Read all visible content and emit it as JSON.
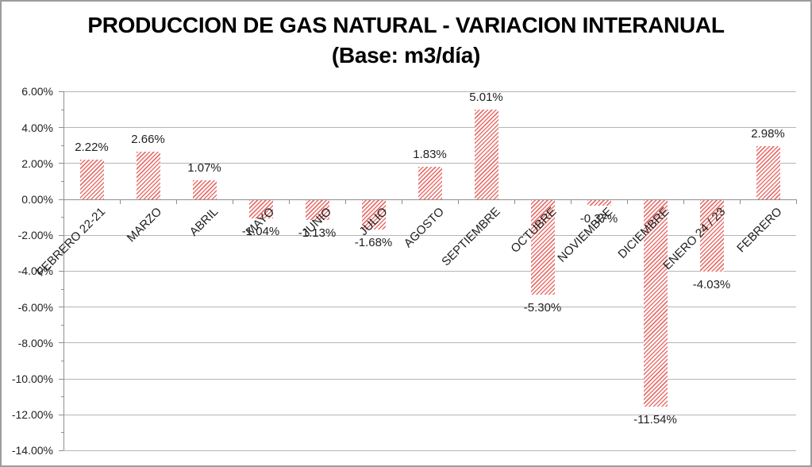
{
  "frame": {
    "border_color": "#9c9c9c",
    "background": "#ffffff"
  },
  "chart_data": {
    "type": "bar",
    "title": "PRODUCCION DE GAS NATURAL - VARIACION INTERANUAL",
    "subtitle": "(Base: m3/día)",
    "xlabel": "",
    "ylabel": "",
    "unit": "%",
    "categories": [
      "FEBRERO 22-21",
      "MARZO",
      "ABRIL",
      "MAYO",
      "JUNIO",
      "JULIO",
      "AGOSTO",
      "SEPTIEMBRE",
      "OCTUBRE",
      "NOVIEMBRE",
      "DICIEMBRE",
      "ENERO 24 / 23",
      "FEBRERO"
    ],
    "values": [
      2.22,
      2.66,
      1.07,
      -1.04,
      -1.13,
      -1.68,
      1.83,
      5.01,
      -5.3,
      -0.37,
      -11.54,
      -4.03,
      2.98
    ],
    "data_labels": [
      "2.22%",
      "2.66%",
      "1.07%",
      "-1.04%",
      "-1.13%",
      "-1.68%",
      "1.83%",
      "5.01%",
      "-5.30%",
      "-0.37%",
      "-11.54%",
      "-4.03%",
      "2.98%"
    ],
    "ylim": [
      -14,
      6
    ],
    "y_major_step": 2,
    "y_minor_step": 1,
    "y_tick_labels": [
      "6.00%",
      "4.00%",
      "2.00%",
      "0.00%",
      "-2.00%",
      "-4.00%",
      "-6.00%",
      "-8.00%",
      "-10.00%",
      "-12.00%",
      "-14.00%"
    ],
    "grid": true,
    "legend": "none",
    "styles": {
      "bar_stripe_color": "#e8706c",
      "bar_background": "#ffffff",
      "gridline_color": "#b5b5b5",
      "axis_color": "#8f8f8f",
      "label_color": "#1f1f1f"
    }
  }
}
